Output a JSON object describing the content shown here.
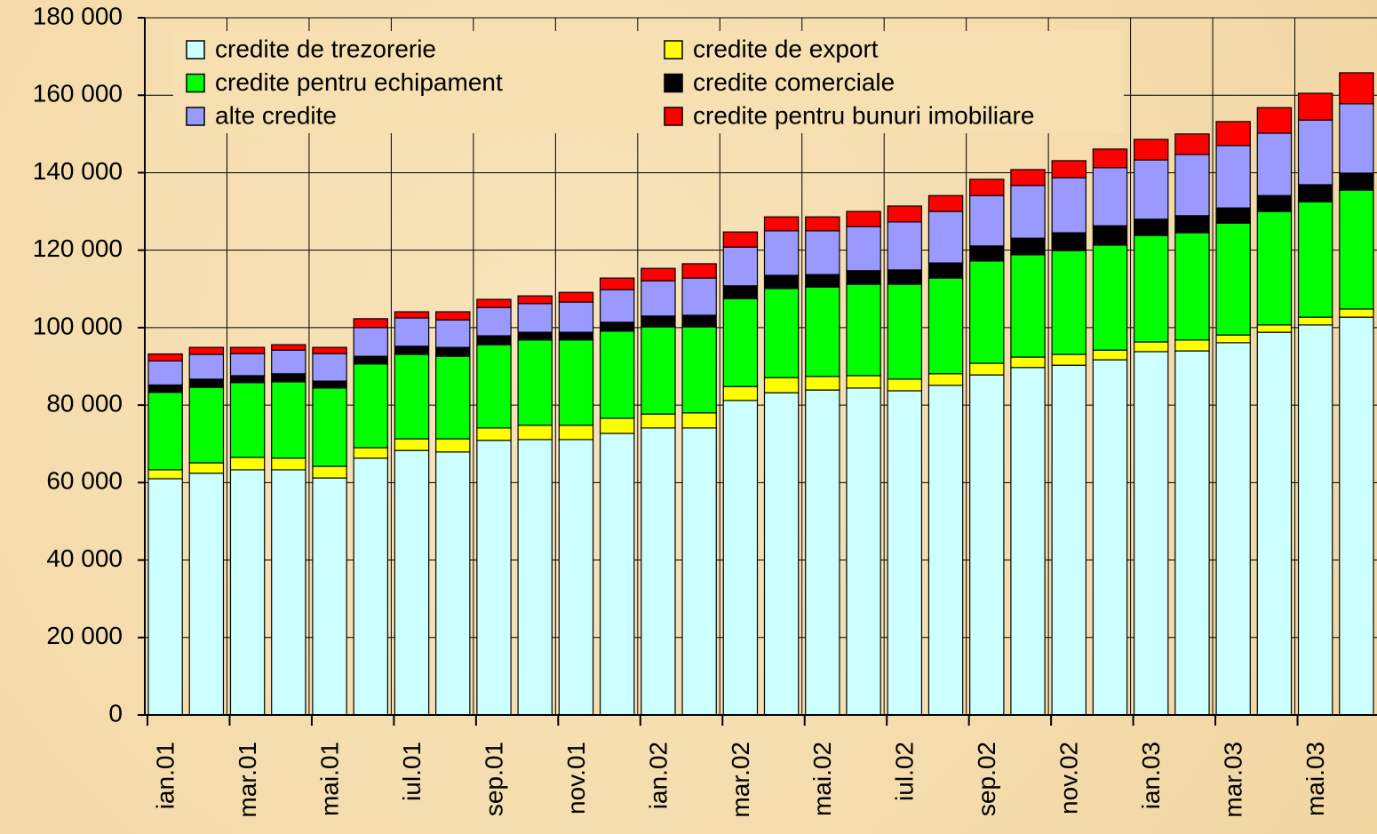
{
  "chart_data": {
    "type": "stacked_bar",
    "categories": [
      "ian.01",
      null,
      "mar.01",
      null,
      "mai.01",
      null,
      "iul.01",
      null,
      "sep.01",
      null,
      "nov.01",
      null,
      "ian.02",
      null,
      "mar.02",
      null,
      "mai.02",
      null,
      "iul.02",
      null,
      "sep.02",
      null,
      "nov.02",
      null,
      "ian.03",
      null,
      "mar.03",
      null,
      "mai.03",
      null
    ],
    "series": [
      {
        "name": "credite de trezorerie",
        "color": "#ccffff",
        "values": [
          61000,
          62400,
          63300,
          63300,
          61200,
          66300,
          68300,
          67900,
          70900,
          71100,
          71100,
          72700,
          74100,
          74100,
          81200,
          83200,
          83900,
          84400,
          83700,
          85100,
          87800,
          89700,
          90300,
          91700,
          93800,
          94000,
          96100,
          98800,
          100700,
          102700
        ]
      },
      {
        "name": "credite de export",
        "color": "#ffff00",
        "values": [
          2300,
          2700,
          3200,
          3000,
          3000,
          2700,
          3000,
          3400,
          3200,
          3700,
          3700,
          3900,
          3600,
          3900,
          3600,
          3900,
          3500,
          3200,
          3000,
          3000,
          3000,
          2700,
          2800,
          2500,
          2500,
          2800,
          2000,
          1900,
          2000,
          2100
        ]
      },
      {
        "name": "credite pentru echipament",
        "color": "#00ff00",
        "values": [
          20000,
          19500,
          19300,
          19700,
          20200,
          21600,
          21800,
          21300,
          21500,
          22000,
          22000,
          22500,
          22500,
          22200,
          22700,
          23000,
          23100,
          23600,
          24500,
          24700,
          26400,
          26400,
          26800,
          27100,
          27500,
          27700,
          28900,
          29300,
          29800,
          30700
        ]
      },
      {
        "name": "credite comerciale",
        "color": "#000000",
        "values": [
          1900,
          2100,
          1800,
          2100,
          1800,
          2000,
          2100,
          2300,
          2300,
          2000,
          2000,
          2300,
          2800,
          3000,
          3300,
          3400,
          3200,
          3500,
          3700,
          3900,
          3900,
          4300,
          4600,
          5000,
          4200,
          4400,
          3900,
          4100,
          4400,
          4400
        ]
      },
      {
        "name": "alte credite",
        "color": "#9999ff",
        "values": [
          6200,
          6400,
          5700,
          6100,
          7100,
          7400,
          7300,
          7100,
          7300,
          7400,
          7800,
          8400,
          9100,
          9600,
          10000,
          11500,
          11300,
          11400,
          12400,
          13300,
          13000,
          13600,
          14200,
          15000,
          15300,
          15800,
          16100,
          16100,
          16700,
          17900
        ]
      },
      {
        "name": "credite pentru bunuri imobiliare",
        "color": "#ff0000",
        "values": [
          1800,
          1800,
          1600,
          1400,
          1600,
          2300,
          1600,
          2100,
          2100,
          2000,
          2500,
          3000,
          3200,
          3700,
          3900,
          3600,
          3600,
          3900,
          4100,
          4100,
          4200,
          4100,
          4400,
          4800,
          5300,
          5300,
          6200,
          6600,
          6900,
          8000
        ]
      }
    ],
    "ylim": [
      0,
      180000
    ],
    "yticks": [
      0,
      {
        "value": 20000,
        "label": "20 000"
      },
      {
        "value": 40000,
        "label": "40 000"
      },
      {
        "value": 60000,
        "label": "60 000"
      },
      {
        "value": 80000,
        "label": "80 000"
      },
      {
        "value": 100000,
        "label": "100 000"
      },
      {
        "value": 120000,
        "label": "120 000"
      },
      {
        "value": 140000,
        "label": "140 000"
      },
      {
        "value": 160000,
        "label": "160 000"
      },
      {
        "value": 180000,
        "label": "180 000"
      }
    ],
    "grid": true,
    "legend": "top-left"
  }
}
